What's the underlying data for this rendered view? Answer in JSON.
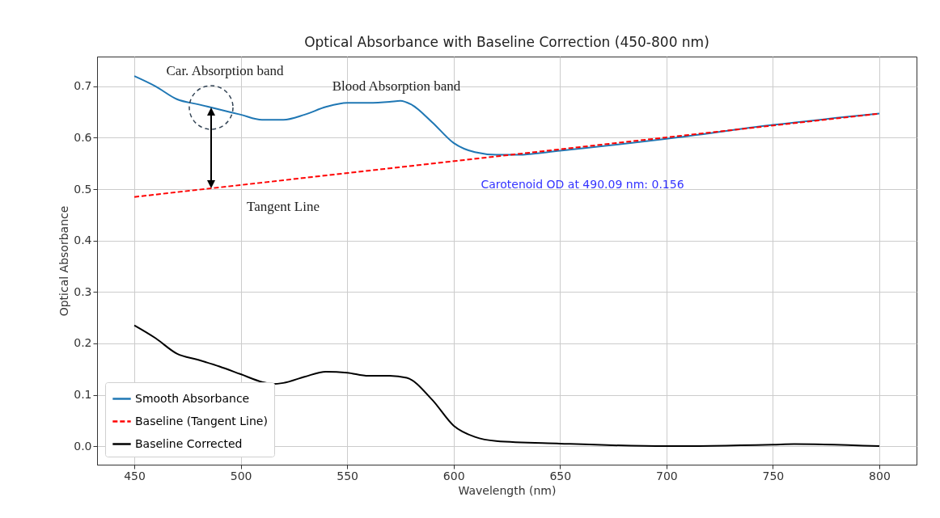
{
  "chart_data": {
    "type": "line",
    "title": "Optical Absorbance with Baseline Correction (450-800 nm)",
    "xlabel": "Wavelength (nm)",
    "ylabel": "Optical Absorbance",
    "xlim": [
      432.5,
      817.5
    ],
    "xticks": [
      450,
      500,
      550,
      600,
      650,
      700,
      750,
      800
    ],
    "ylim": [
      -0.036,
      0.758
    ],
    "yticks": [
      {
        "value": 0,
        "label": "0.0"
      },
      0.1,
      0.2,
      0.3,
      0.4,
      0.5,
      0.6,
      0.7
    ],
    "grid": true,
    "legend": "bottom left",
    "series": [
      {
        "name": "Smooth Absorbance",
        "color": "#1f77b4",
        "line_style": "solid",
        "x": [
          450,
          460,
          470,
          480,
          490,
          500,
          510,
          520,
          530,
          540,
          550,
          560,
          570,
          575,
          580,
          590,
          600,
          610,
          620,
          630,
          650,
          700,
          750,
          800
        ],
        "values": [
          0.72,
          0.7,
          0.675,
          0.665,
          0.655,
          0.645,
          0.635,
          0.635,
          0.645,
          0.66,
          0.668,
          0.668,
          0.67,
          0.672,
          0.665,
          0.63,
          0.59,
          0.572,
          0.567,
          0.567,
          0.575,
          0.598,
          0.625,
          0.647
        ]
      },
      {
        "name": "Baseline (Tangent Line)",
        "color": "#ff0000",
        "line_style": "dashed",
        "x": [
          450,
          800
        ],
        "values": [
          0.485,
          0.647
        ]
      },
      {
        "name": "Baseline Corrected",
        "color": "#000000",
        "line_style": "solid",
        "x": [
          450,
          460,
          470,
          480,
          490,
          500,
          510,
          515,
          520,
          530,
          540,
          550,
          560,
          570,
          578,
          590,
          600,
          610,
          620,
          650,
          700,
          750,
          760,
          800
        ],
        "values": [
          0.235,
          0.21,
          0.18,
          0.168,
          0.155,
          0.14,
          0.125,
          0.121,
          0.123,
          0.135,
          0.145,
          0.143,
          0.137,
          0.137,
          0.133,
          0.09,
          0.04,
          0.018,
          0.01,
          0.005,
          0.0,
          0.003,
          0.004,
          0.0
        ]
      }
    ],
    "annotations": [
      "Car. Absorption band",
      "Blood Absorption band",
      "Tangent Line",
      "Carotenoid OD at 490.09 nm: 0.156"
    ]
  }
}
